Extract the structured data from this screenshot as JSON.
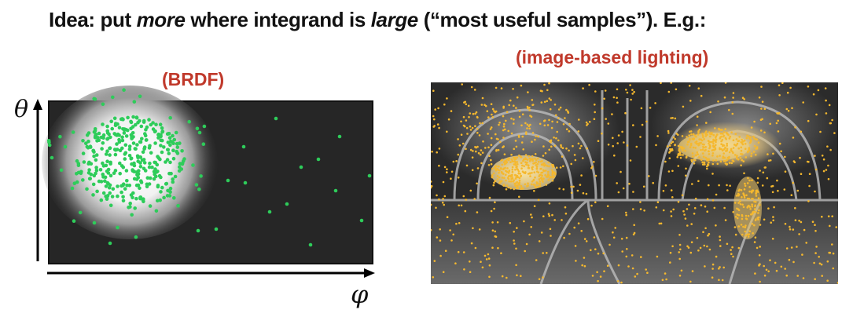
{
  "headline": {
    "part1": "Idea: put ",
    "em1": "more",
    "part2": " where integrand is ",
    "em2": "large",
    "part3": " (“most useful samples”).  E.g.:"
  },
  "brdf": {
    "label": "(BRDF)",
    "y_axis_symbol": "θ",
    "x_axis_symbol": "φ"
  },
  "ibl": {
    "label": "(image-based lighting)"
  },
  "colors": {
    "label_red": "#c0392b",
    "brdf_dot": "#2ecc5a",
    "ibl_dot": "#f5b82e",
    "panel_dark": "#262626"
  }
}
